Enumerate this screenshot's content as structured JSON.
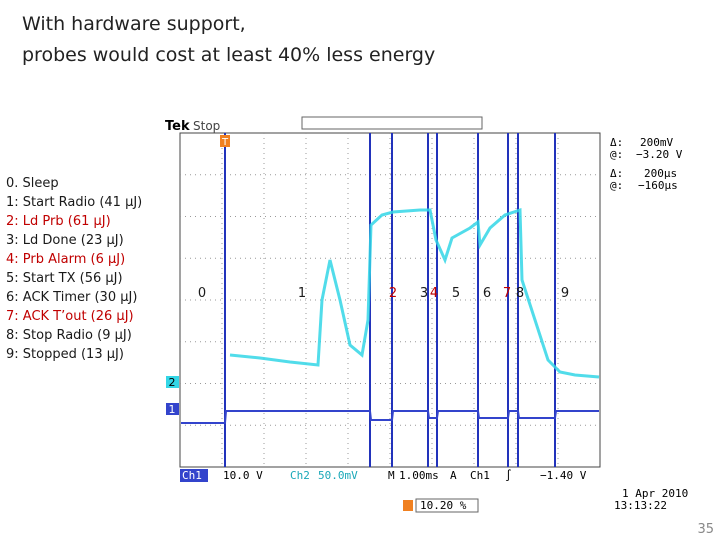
{
  "title": [
    "With hardware support,",
    "probes would cost at least 40% less energy"
  ],
  "events": [
    {
      "label": "0. Sleep",
      "color": "#1a1a1a"
    },
    {
      "label": "1: Start Radio (41 µJ)",
      "color": "#1a1a1a"
    },
    {
      "label": "2: Ld Prb (61 µJ)",
      "color": "#c00000"
    },
    {
      "label": "3: Ld Done (23 µJ)",
      "color": "#1a1a1a"
    },
    {
      "label": "4: Prb Alarm (6 µJ)",
      "color": "#c00000"
    },
    {
      "label": "5: Start TX (56 µJ)",
      "color": "#1a1a1a"
    },
    {
      "label": "6: ACK Timer (30 µJ)",
      "color": "#1a1a1a"
    },
    {
      "label": "7: ACK T’out (26 µJ)",
      "color": "#c00000"
    },
    {
      "label": "8: Stop Radio (9 µJ)",
      "color": "#1a1a1a"
    },
    {
      "label": "9: Stopped (13 µJ)",
      "color": "#1a1a1a"
    }
  ],
  "markers": [
    {
      "label": "0",
      "color": "#1a1a1a"
    },
    {
      "label": "1",
      "color": "#1a1a1a"
    },
    {
      "label": "2",
      "color": "#c00000"
    },
    {
      "label": "3",
      "color": "#1a1a1a"
    },
    {
      "label": "4",
      "color": "#c00000"
    },
    {
      "label": "5",
      "color": "#1a1a1a"
    },
    {
      "label": "6",
      "color": "#1a1a1a"
    },
    {
      "label": "7",
      "color": "#c00000"
    },
    {
      "label": "8",
      "color": "#1a1a1a"
    },
    {
      "label": "9",
      "color": "#1a1a1a"
    }
  ],
  "scope": {
    "brand": "Tek",
    "state": "Stop",
    "cursor_v": {
      "delta_symbol": "Δ:",
      "delta": "200mV",
      "at_symbol": "@:",
      "at": "−3.20 V"
    },
    "cursor_t": {
      "delta_symbol": "Δ:",
      "delta": "200µs",
      "at_symbol": "@:",
      "at": "−160µs"
    },
    "ch1": "Ch1",
    "ch1_scale": "10.0 V",
    "ch2": "Ch2",
    "ch2_scale": "50.0mV",
    "timebase_label": "M",
    "timebase": "1.00ms",
    "trigger_label": "A",
    "trigger_source": "Ch1",
    "trigger_slope": "∫",
    "trigger_level": "−1.40 V",
    "trigger_position": "10.20 %",
    "date": "1 Apr 2010",
    "time": "13:13:22",
    "ch1_marker": "1",
    "ch2_marker": "2",
    "trigger_marker": "T"
  },
  "page_number": "35"
}
